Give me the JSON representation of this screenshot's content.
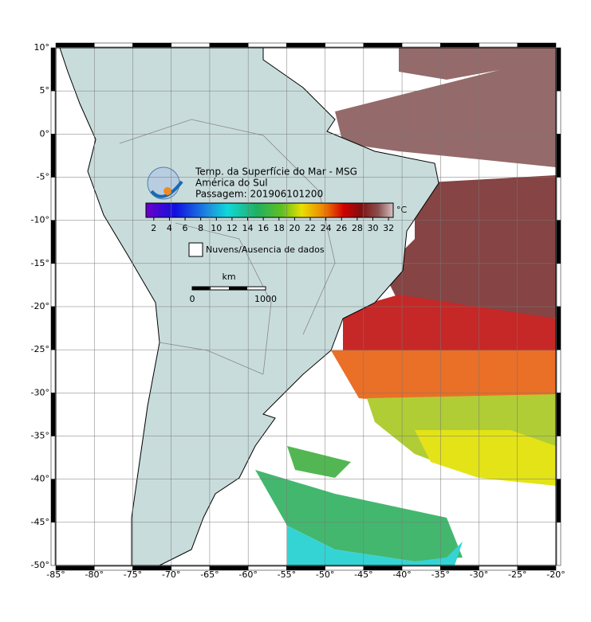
{
  "map": {
    "title": [
      "Temp. da Superfície do Mar - MSG",
      "América do Sul",
      "Passagem: 201906101200"
    ],
    "xlim": [
      -85,
      -20
    ],
    "ylim": [
      -50,
      10
    ],
    "xticks": [
      {
        "value": -85,
        "label": "-85°"
      },
      {
        "value": -80,
        "label": "-80°"
      },
      {
        "value": -75,
        "label": "-75°"
      },
      {
        "value": -70,
        "label": "-70°"
      },
      {
        "value": -65,
        "label": "-65°"
      },
      {
        "value": -60,
        "label": "-60°"
      },
      {
        "value": -55,
        "label": "-55°"
      },
      {
        "value": -50,
        "label": "-50°"
      },
      {
        "value": -45,
        "label": "-45°"
      },
      {
        "value": -40,
        "label": "-40°"
      },
      {
        "value": -35,
        "label": "-35°"
      },
      {
        "value": -30,
        "label": "-30°"
      },
      {
        "value": -25,
        "label": "-25°"
      },
      {
        "value": -20,
        "label": "-20°"
      }
    ],
    "yticks": [
      {
        "value": 10,
        "label": "10°"
      },
      {
        "value": 5,
        "label": "5°"
      },
      {
        "value": 0,
        "label": "0°"
      },
      {
        "value": -5,
        "label": "-5°"
      },
      {
        "value": -10,
        "label": "-10°"
      },
      {
        "value": -15,
        "label": "-15°"
      },
      {
        "value": -20,
        "label": "-20°"
      },
      {
        "value": -25,
        "label": "-25°"
      },
      {
        "value": -30,
        "label": "-30°"
      },
      {
        "value": -35,
        "label": "-35°"
      },
      {
        "value": -40,
        "label": "-40°"
      },
      {
        "value": -45,
        "label": "-45°"
      },
      {
        "value": -50,
        "label": "-50°"
      }
    ],
    "grid": true,
    "colorbar": {
      "unit": "°C",
      "clim": [
        1,
        32.6
      ],
      "ticks": [
        2,
        4,
        6,
        8,
        10,
        12,
        14,
        16,
        18,
        20,
        22,
        24,
        26,
        28,
        30,
        32
      ]
    },
    "legend": "Nuvens/Ausencia de dados",
    "scalebar": {
      "unit": "km",
      "labels": [
        0,
        1000
      ]
    }
  }
}
